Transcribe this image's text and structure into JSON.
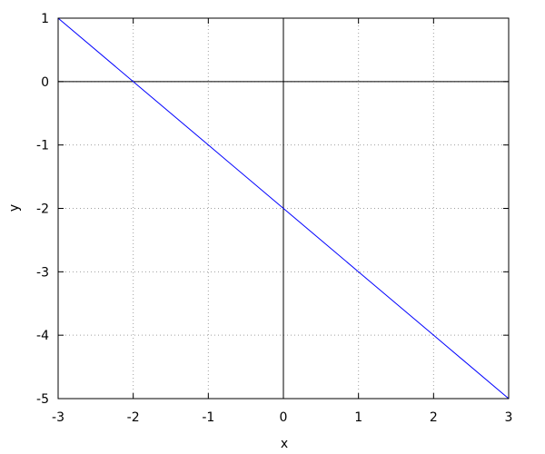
{
  "chart_data": {
    "type": "line",
    "title": "",
    "xlabel": "x",
    "ylabel": "y",
    "xlim": [
      -3,
      3
    ],
    "ylim": [
      -5,
      1
    ],
    "xticks": [
      "-3",
      "-2",
      "-1",
      "0",
      "1",
      "2",
      "3"
    ],
    "yticks": [
      "1",
      "0",
      "-1",
      "-2",
      "-3",
      "-4",
      "-5"
    ],
    "grid": true,
    "zero_axes": true,
    "series": [
      {
        "x": [
          -3,
          -2,
          -1,
          0,
          1,
          2,
          3
        ],
        "y": [
          1,
          0,
          -1,
          -2,
          -3,
          -4,
          -5
        ],
        "color": "#0000ff"
      }
    ]
  }
}
